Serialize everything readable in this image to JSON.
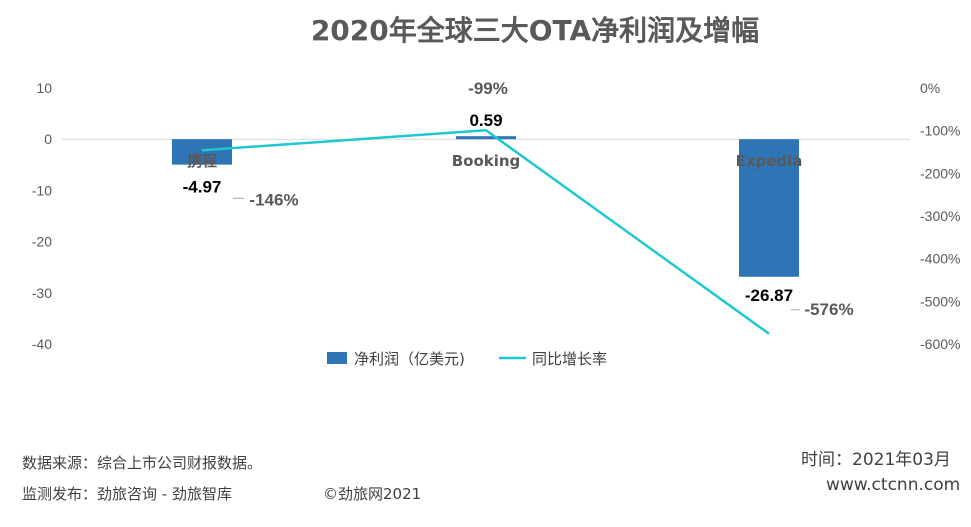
{
  "chart_data": {
    "type": "bar+line",
    "title": "2020年全球三大OTA净利润及增幅",
    "categories": [
      "携程",
      "Booking",
      "Expedia"
    ],
    "series": [
      {
        "name": "净利润（亿美元)",
        "type": "bar",
        "axis": "left",
        "values": [
          -4.97,
          0.59,
          -26.87
        ],
        "labels": [
          "-4.97",
          "0.59",
          "-26.87"
        ],
        "color": "#2E75B6"
      },
      {
        "name": "同比增长率",
        "type": "line",
        "axis": "right",
        "values": [
          -146,
          -99,
          -576
        ],
        "labels": [
          "-146%",
          "-99%",
          "-576%"
        ],
        "color": "#1FC8D0"
      }
    ],
    "left_axis": {
      "min": -40,
      "max": 10,
      "step": 10,
      "ticks": [
        "10",
        "0",
        "-10",
        "-20",
        "-30",
        "-40"
      ]
    },
    "right_axis": {
      "min": -600,
      "max": 0,
      "step": 100,
      "ticks": [
        "0%",
        "-100%",
        "-200%",
        "-300%",
        "-400%",
        "-500%",
        "-600%"
      ]
    },
    "legend_position": "bottom",
    "grid": false
  },
  "footer": {
    "source": "数据来源：综合上市公司财报数据。",
    "monitor": "监测发布：劲旅咨询 - 劲旅智库",
    "copyright": "©劲旅网2021",
    "time": "时间：2021年03月",
    "website": "www.ctcnn.com"
  }
}
